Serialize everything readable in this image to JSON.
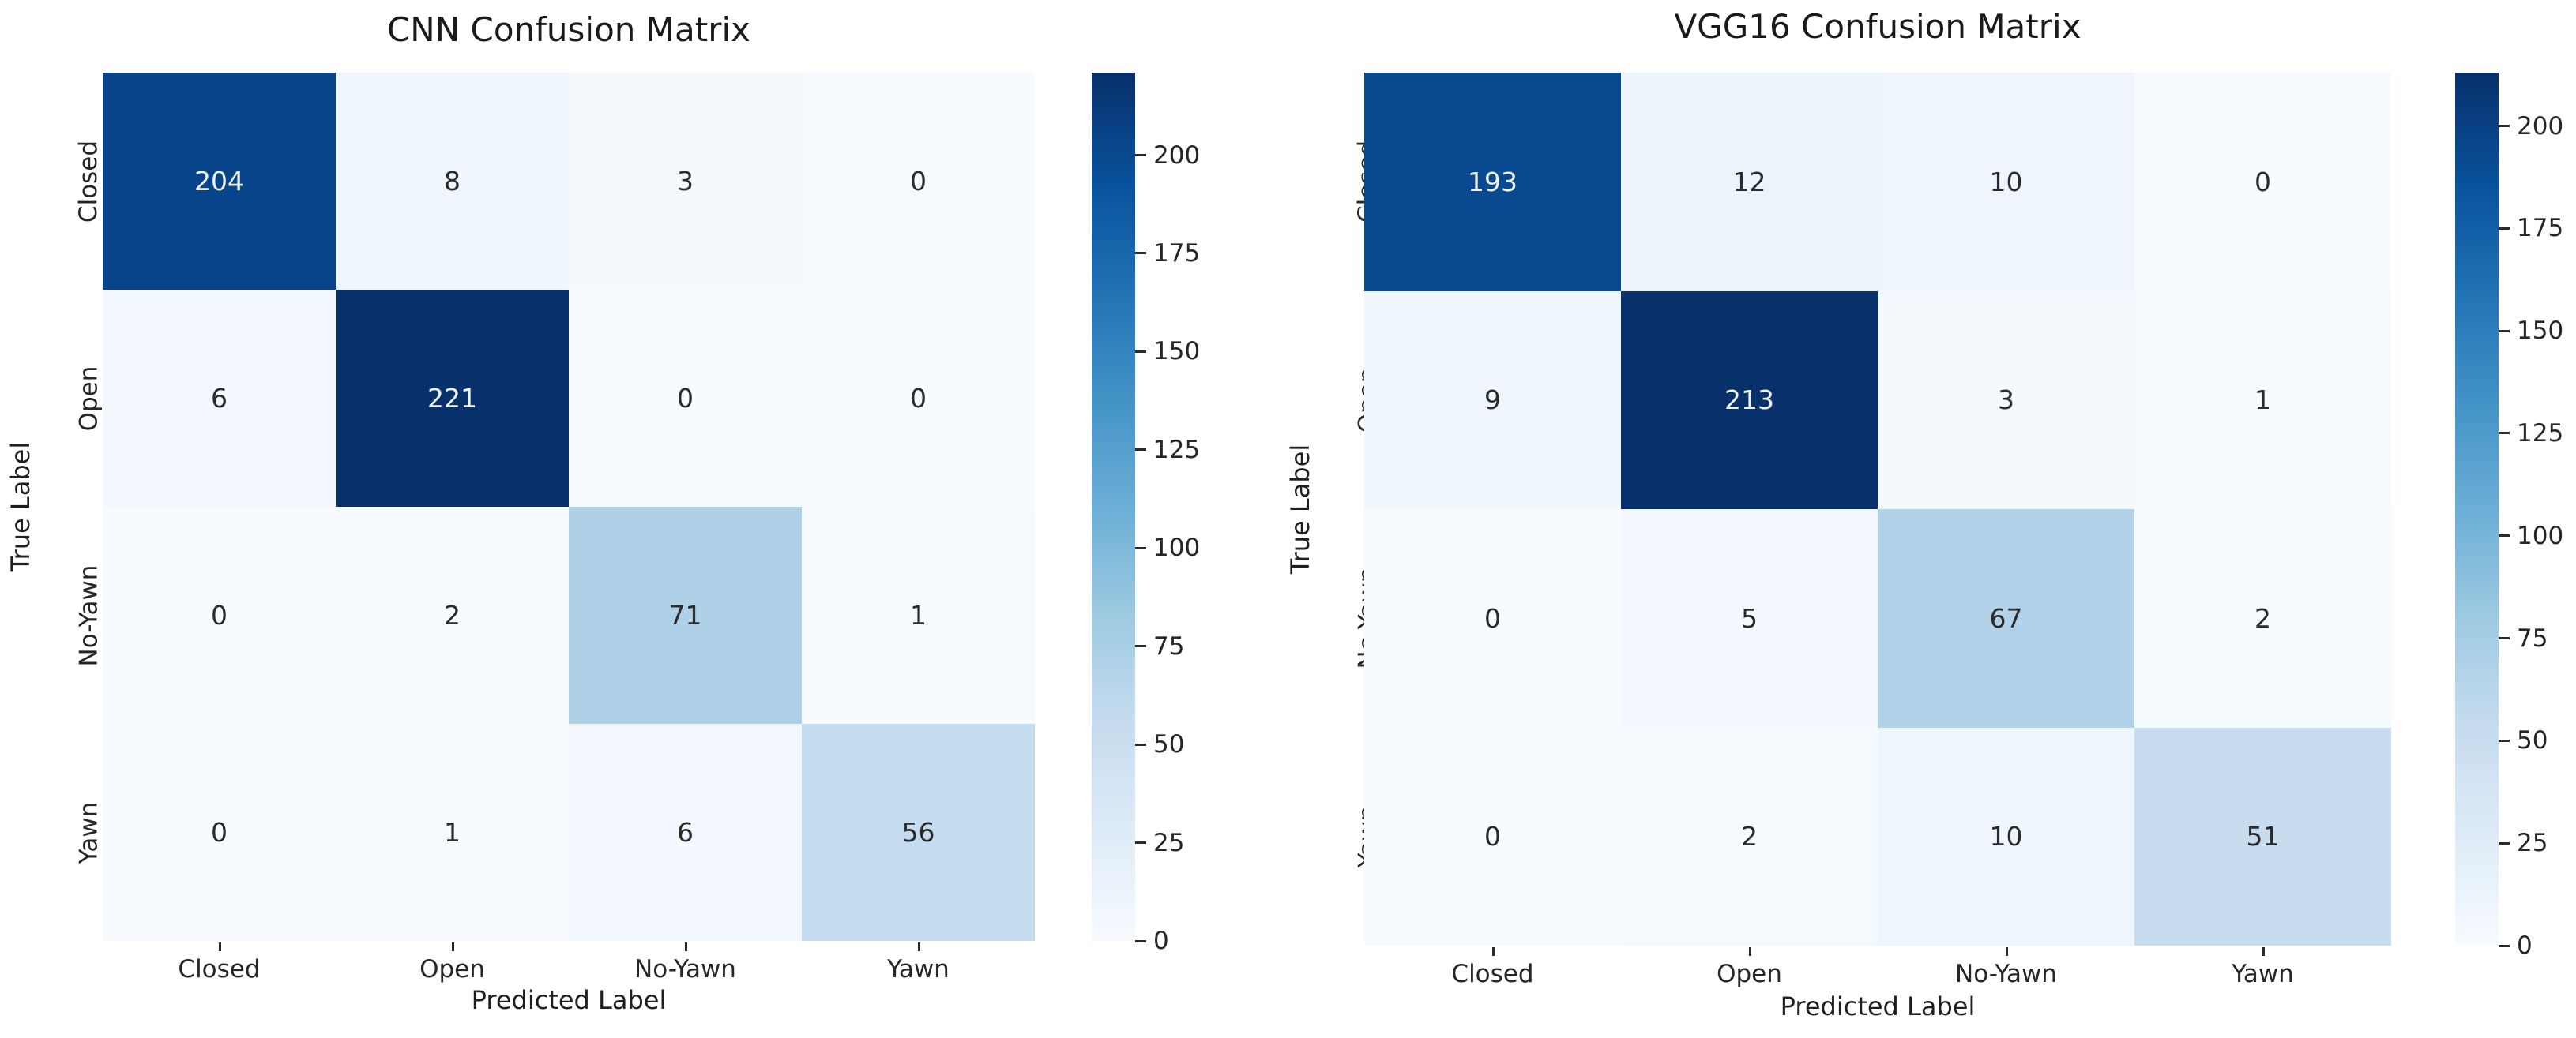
{
  "page": {
    "background": "#ffffff",
    "text_color": "#1f1f1f"
  },
  "chart_data": [
    {
      "type": "heatmap",
      "title": "CNN Confusion Matrix",
      "xlabel": "Predicted Label",
      "ylabel": "True Label",
      "x_categories": [
        "Closed",
        "Open",
        "No-Yawn",
        "Yawn"
      ],
      "y_categories": [
        "Closed",
        "Open",
        "No-Yawn",
        "Yawn"
      ],
      "matrix": [
        [
          204,
          8,
          3,
          0
        ],
        [
          6,
          221,
          0,
          0
        ],
        [
          0,
          2,
          71,
          1
        ],
        [
          0,
          1,
          6,
          56
        ]
      ],
      "vmin": 0,
      "vmax": 221,
      "colorbar_ticks": [
        0,
        25,
        50,
        75,
        100,
        125,
        150,
        175,
        200
      ],
      "colormap": "Blues",
      "legend_position": "right-colorbar",
      "grid": false
    },
    {
      "type": "heatmap",
      "title": "VGG16 Confusion Matrix",
      "xlabel": "Predicted Label",
      "ylabel": "True Label",
      "x_categories": [
        "Closed",
        "Open",
        "No-Yawn",
        "Yawn"
      ],
      "y_categories": [
        "Closed",
        "Open",
        "No-Yawn",
        "Yawn"
      ],
      "matrix": [
        [
          193,
          12,
          10,
          0
        ],
        [
          9,
          213,
          3,
          1
        ],
        [
          0,
          5,
          67,
          2
        ],
        [
          0,
          2,
          10,
          51
        ]
      ],
      "vmin": 0,
      "vmax": 213,
      "colorbar_ticks": [
        0,
        25,
        50,
        75,
        100,
        125,
        150,
        175,
        200
      ],
      "colormap": "Blues",
      "legend_position": "right-colorbar",
      "grid": false
    }
  ],
  "colormap_stops": {
    "Blues": [
      "#f7fbff",
      "#deebf7",
      "#c6dbef",
      "#9ecae1",
      "#6baed6",
      "#4292c6",
      "#2171b5",
      "#08519c",
      "#08306b"
    ]
  },
  "annotation_colors": {
    "on_dark": "#eef3fa",
    "on_light": "#2b2b2b"
  }
}
